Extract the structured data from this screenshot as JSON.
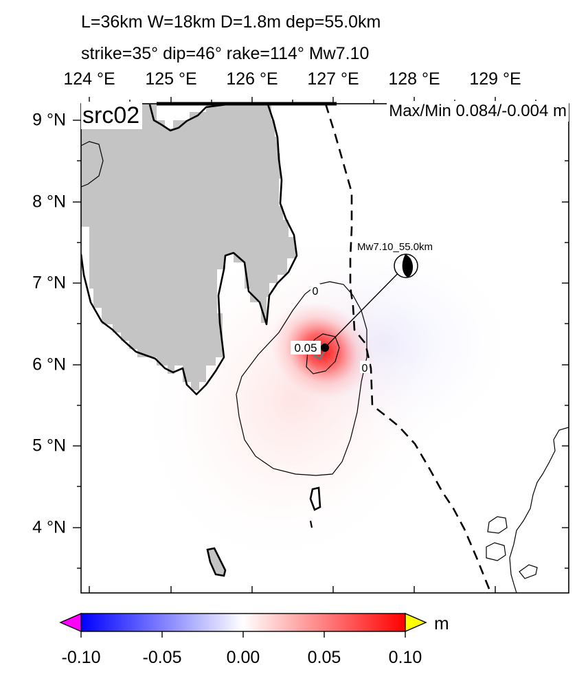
{
  "header": {
    "line1": "L=36km W=18km D=1.8m dep=55.0km",
    "line2": "strike=35° dip=46° rake=114° Mw7.10"
  },
  "map": {
    "source_label": "src02",
    "max_min_label": "Max/Min 0.084/-0.004 m",
    "lon_ticks": [
      "124 °E",
      "125 °E",
      "126 °E",
      "127 °E",
      "128 °E",
      "129 °E"
    ],
    "lat_ticks": [
      "9 °N",
      "8 °N",
      "7 °N",
      "6 °N",
      "5 °N",
      "4 °N"
    ],
    "contour_labels": [
      "0",
      "0",
      "0.05"
    ],
    "event_label": "Mw7.10_55.0km",
    "colors": {
      "land": "#c4c4c4",
      "positive": "#ff1a1a",
      "negative": "#1a1aff",
      "trench": "#000000"
    }
  },
  "colorbar": {
    "unit": "m",
    "tick_labels": [
      "-0.10",
      "-0.05",
      "0.00",
      "0.05",
      "0.10"
    ],
    "range": [
      -0.1,
      0.1
    ],
    "colors": {
      "min": "#0000ff",
      "mid": "#ffffff",
      "max": "#ff0000",
      "under": "#ff00ff",
      "over": "#ffff00"
    }
  }
}
